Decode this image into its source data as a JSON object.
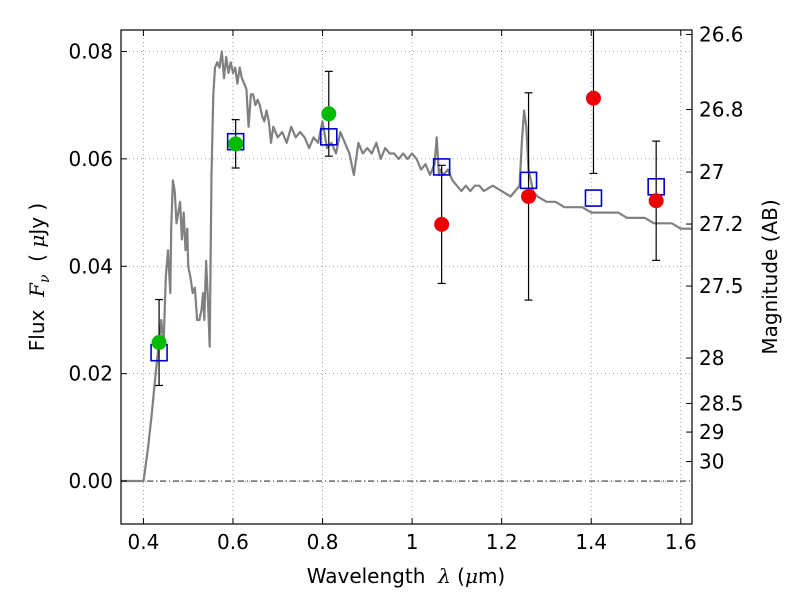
{
  "chart_data": {
    "type": "scatter",
    "xlabel": {
      "pre": "Wavelength  ",
      "sym": "λ",
      "post": " (",
      "unit_sym": "μ",
      "unit": "m)"
    },
    "ylabel": {
      "pre": "Flux  ",
      "sym": "F",
      "sub": "ν",
      "post": "  ( ",
      "unit_sym": "μ",
      "unit": "Jy )"
    },
    "y2label": "Magnitude (AB)",
    "xlim": [
      0.35,
      1.625
    ],
    "ylim": [
      -0.008,
      0.084
    ],
    "grid": true,
    "x_ticks": [
      {
        "v": 0.4,
        "label": "0.4"
      },
      {
        "v": 0.6,
        "label": "0.6"
      },
      {
        "v": 0.8,
        "label": "0.8"
      },
      {
        "v": 1.0,
        "label": "1"
      },
      {
        "v": 1.2,
        "label": "1.2"
      },
      {
        "v": 1.4,
        "label": "1.4"
      },
      {
        "v": 1.6,
        "label": "1.6"
      }
    ],
    "y_ticks": [
      {
        "v": 0.0,
        "label": "0.00"
      },
      {
        "v": 0.02,
        "label": "0.02"
      },
      {
        "v": 0.04,
        "label": "0.04"
      },
      {
        "v": 0.06,
        "label": "0.06"
      },
      {
        "v": 0.08,
        "label": "0.08"
      }
    ],
    "y2_ticks": [
      {
        "mag": 26.6,
        "label": "26.6"
      },
      {
        "mag": 26.8,
        "label": "26.8"
      },
      {
        "mag": 27.0,
        "label": "27"
      },
      {
        "mag": 27.2,
        "label": "27.2"
      },
      {
        "mag": 27.5,
        "label": "27.5"
      },
      {
        "mag": 28.0,
        "label": "28"
      },
      {
        "mag": 28.5,
        "label": "28.5"
      },
      {
        "mag": 29.0,
        "label": "29"
      },
      {
        "mag": 30.0,
        "label": "30"
      }
    ],
    "model_spectrum": {
      "color": "#808080",
      "x": [
        0.35,
        0.4,
        0.402,
        0.41,
        0.418,
        0.425,
        0.43,
        0.435,
        0.44,
        0.445,
        0.45,
        0.455,
        0.46,
        0.462,
        0.466,
        0.47,
        0.474,
        0.478,
        0.482,
        0.486,
        0.49,
        0.494,
        0.498,
        0.5,
        0.505,
        0.51,
        0.515,
        0.52,
        0.525,
        0.53,
        0.533,
        0.536,
        0.54,
        0.544,
        0.548,
        0.552,
        0.556,
        0.56,
        0.565,
        0.57,
        0.575,
        0.58,
        0.585,
        0.59,
        0.595,
        0.6,
        0.605,
        0.61,
        0.615,
        0.62,
        0.625,
        0.63,
        0.635,
        0.64,
        0.645,
        0.65,
        0.655,
        0.66,
        0.665,
        0.67,
        0.675,
        0.68,
        0.685,
        0.69,
        0.7,
        0.71,
        0.72,
        0.73,
        0.74,
        0.75,
        0.76,
        0.77,
        0.78,
        0.79,
        0.8,
        0.81,
        0.82,
        0.83,
        0.84,
        0.85,
        0.86,
        0.87,
        0.88,
        0.89,
        0.9,
        0.91,
        0.92,
        0.93,
        0.94,
        0.95,
        0.96,
        0.97,
        0.98,
        0.99,
        1.0,
        1.01,
        1.02,
        1.03,
        1.04,
        1.05,
        1.055,
        1.06,
        1.063,
        1.07,
        1.08,
        1.09,
        1.1,
        1.11,
        1.12,
        1.13,
        1.14,
        1.15,
        1.16,
        1.18,
        1.2,
        1.22,
        1.24,
        1.245,
        1.25,
        1.255,
        1.26,
        1.265,
        1.27,
        1.28,
        1.3,
        1.32,
        1.34,
        1.36,
        1.38,
        1.4,
        1.42,
        1.44,
        1.46,
        1.48,
        1.5,
        1.52,
        1.54,
        1.56,
        1.58,
        1.6,
        1.625
      ],
      "y": [
        0,
        0,
        0.001,
        0.006,
        0.012,
        0.018,
        0.022,
        0.026,
        0.03,
        0.025,
        0.038,
        0.043,
        0.035,
        0.047,
        0.056,
        0.054,
        0.048,
        0.05,
        0.052,
        0.045,
        0.05,
        0.043,
        0.047,
        0.04,
        0.038,
        0.035,
        0.036,
        0.03,
        0.03,
        0.032,
        0.035,
        0.03,
        0.041,
        0.034,
        0.025,
        0.057,
        0.072,
        0.077,
        0.078,
        0.077,
        0.08,
        0.075,
        0.079,
        0.076,
        0.078,
        0.076,
        0.077,
        0.074,
        0.077,
        0.075,
        0.074,
        0.073,
        0.066,
        0.072,
        0.072,
        0.07,
        0.071,
        0.07,
        0.068,
        0.067,
        0.069,
        0.067,
        0.063,
        0.066,
        0.064,
        0.065,
        0.063,
        0.066,
        0.064,
        0.065,
        0.064,
        0.062,
        0.064,
        0.063,
        0.067,
        0.062,
        0.063,
        0.061,
        0.065,
        0.063,
        0.061,
        0.057,
        0.063,
        0.061,
        0.062,
        0.061,
        0.063,
        0.06,
        0.062,
        0.061,
        0.061,
        0.06,
        0.061,
        0.06,
        0.061,
        0.06,
        0.058,
        0.059,
        0.057,
        0.059,
        0.064,
        0.057,
        0.058,
        0.057,
        0.058,
        0.056,
        0.055,
        0.054,
        0.055,
        0.054,
        0.055,
        0.055,
        0.054,
        0.055,
        0.054,
        0.053,
        0.055,
        0.063,
        0.069,
        0.066,
        0.058,
        0.056,
        0.054,
        0.053,
        0.052,
        0.052,
        0.051,
        0.051,
        0.051,
        0.05,
        0.05,
        0.05,
        0.05,
        0.049,
        0.049,
        0.049,
        0.048,
        0.048,
        0.048,
        0.047,
        0.047
      ]
    },
    "series": [
      {
        "marker": "open-square",
        "color": "#0000cc",
        "points": [
          {
            "x": 0.435,
            "y": 0.0239
          },
          {
            "x": 0.606,
            "y": 0.0632
          },
          {
            "x": 0.814,
            "y": 0.0641
          },
          {
            "x": 1.066,
            "y": 0.0585
          },
          {
            "x": 1.26,
            "y": 0.056
          },
          {
            "x": 1.405,
            "y": 0.0527
          },
          {
            "x": 1.545,
            "y": 0.0548
          }
        ]
      },
      {
        "marker": "filled-circle",
        "color": "#00bb00",
        "points": [
          {
            "x": 0.435,
            "y": 0.0258,
            "err": 0.008
          },
          {
            "x": 0.606,
            "y": 0.0628,
            "err": 0.0045
          },
          {
            "x": 0.814,
            "y": 0.0684,
            "err": 0.0079
          }
        ]
      },
      {
        "marker": "filled-circle",
        "color": "#ee0000",
        "points": [
          {
            "x": 1.066,
            "y": 0.0478,
            "err": 0.011
          },
          {
            "x": 1.26,
            "y": 0.053,
            "err": 0.0193
          },
          {
            "x": 1.405,
            "y": 0.0713,
            "err": 0.014
          },
          {
            "x": 1.545,
            "y": 0.0522,
            "err": 0.0111
          }
        ]
      }
    ]
  }
}
